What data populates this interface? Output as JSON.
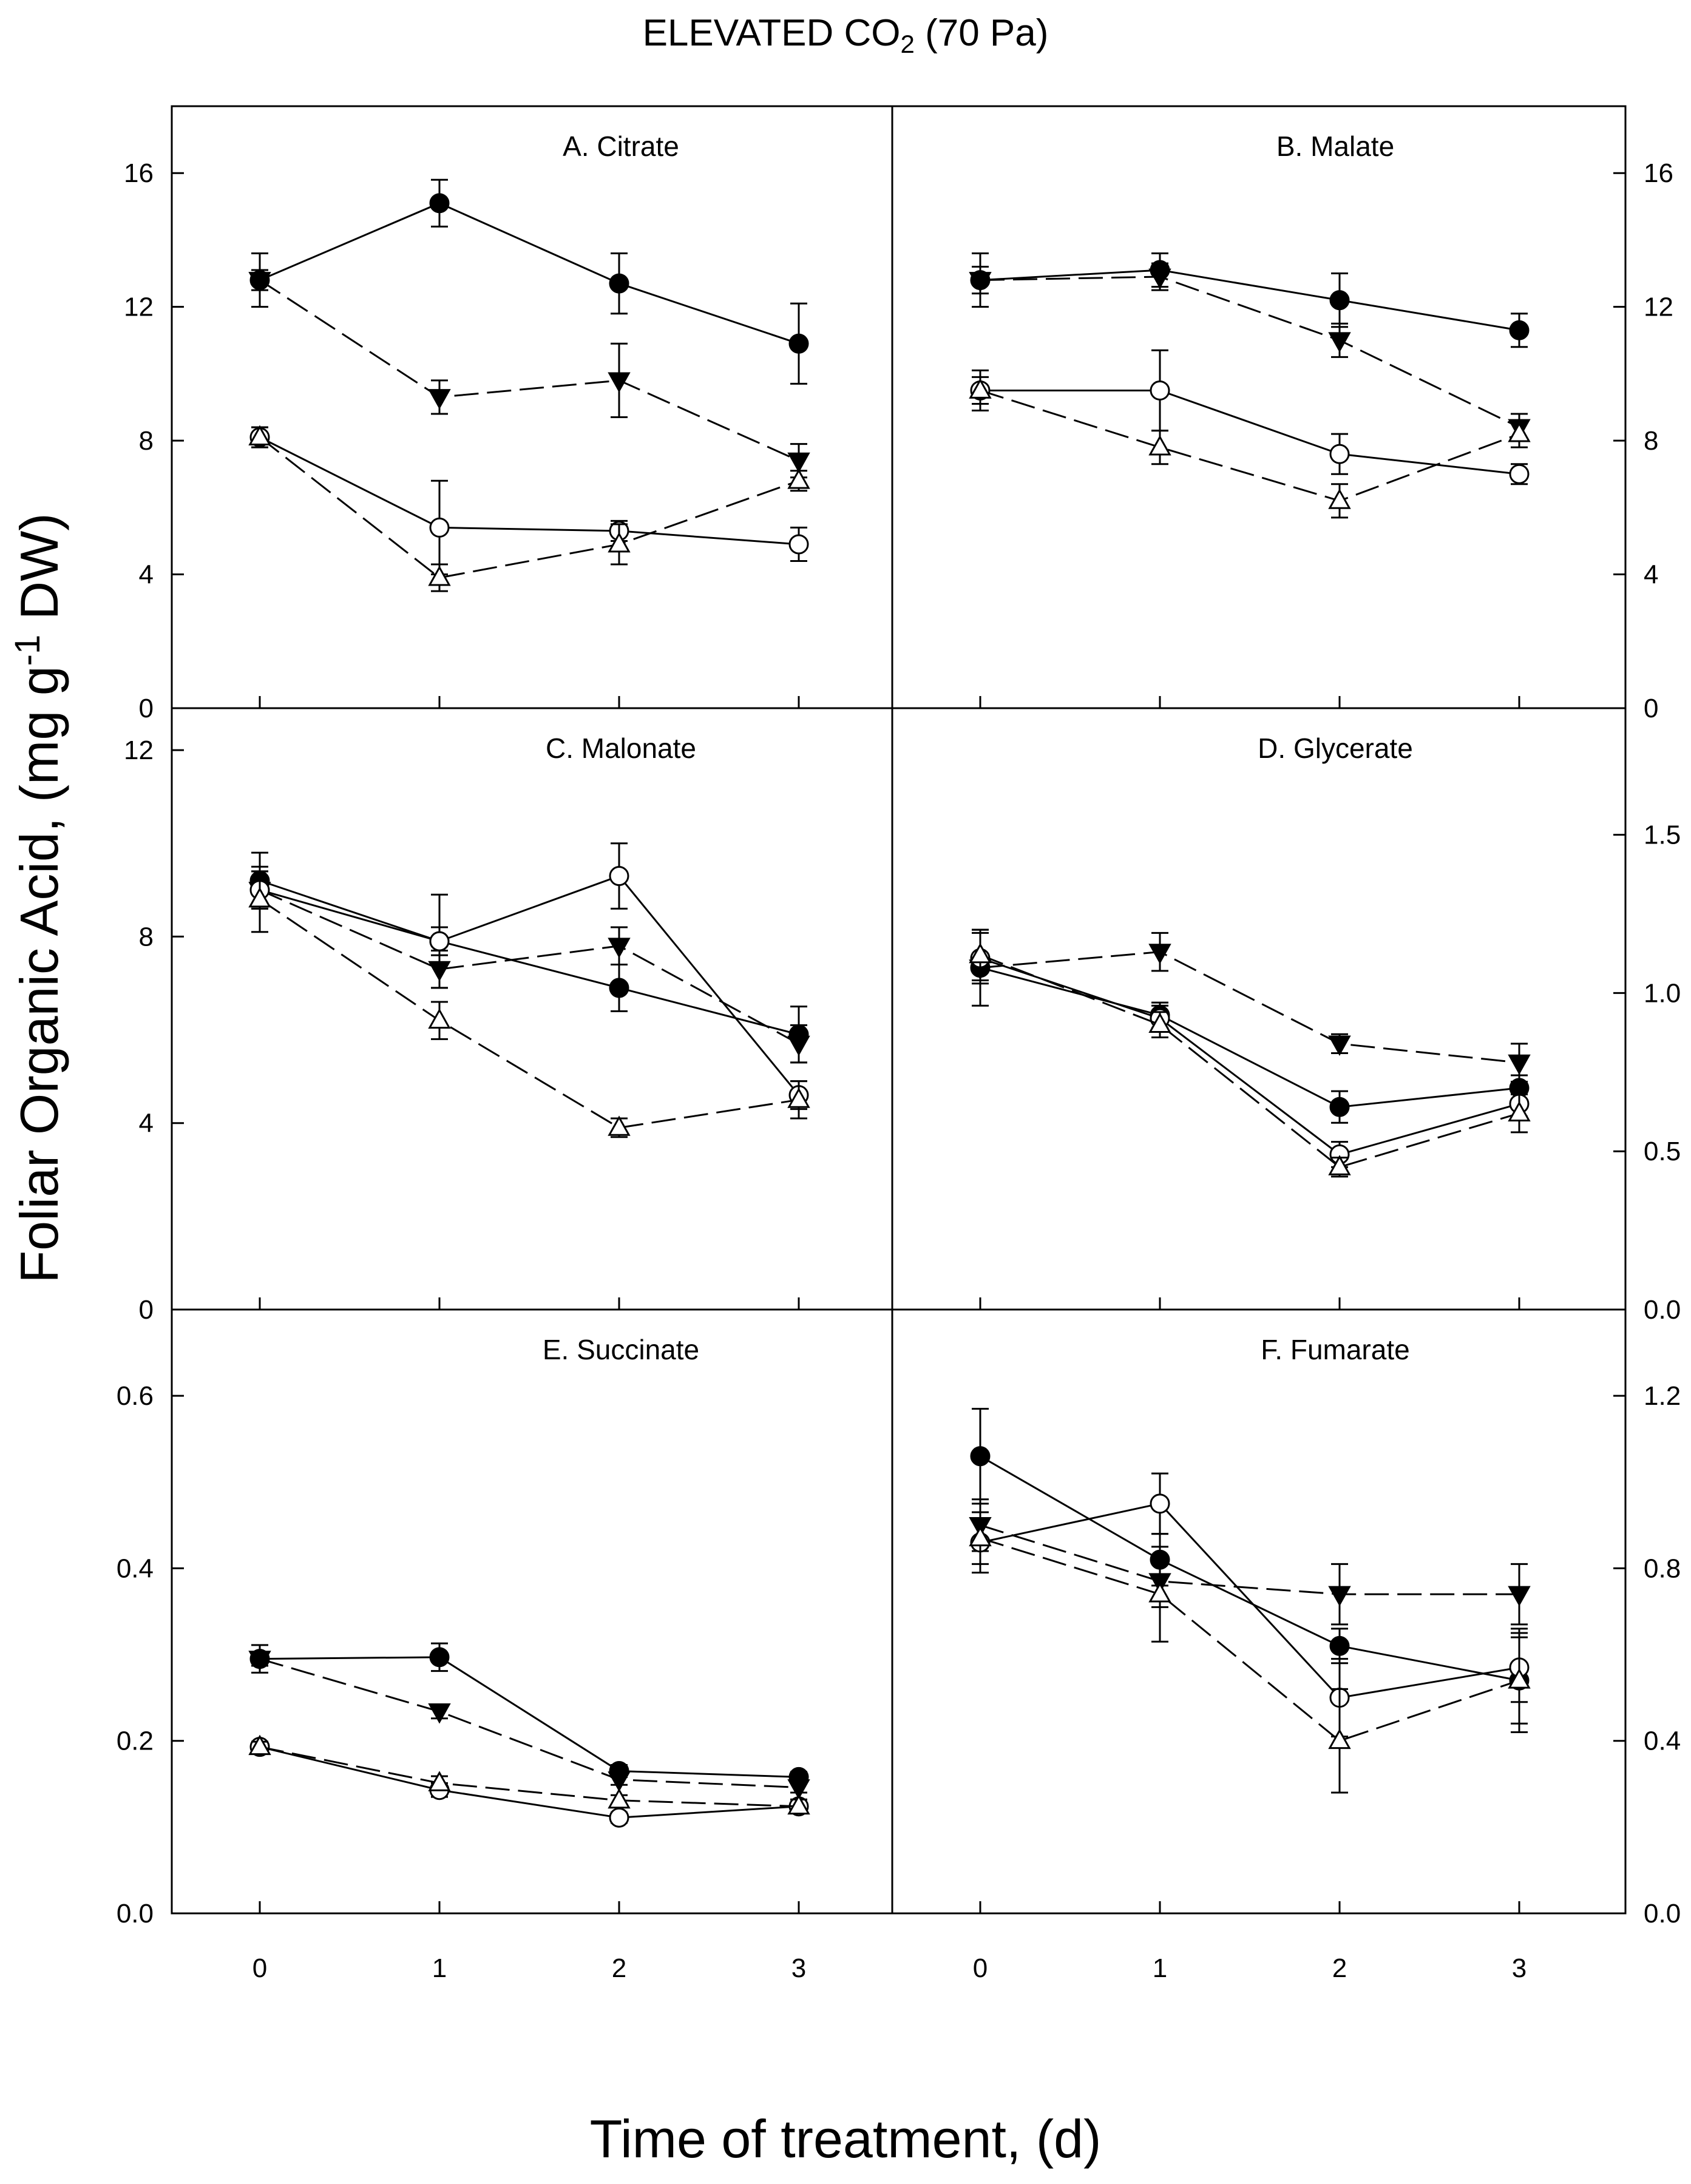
{
  "figure": {
    "title_main": "ELEVATED CO",
    "title_sub": "2",
    "title_tail": " (70 Pa)",
    "ylabel_main": "Foliar Organic Acid, (mg g",
    "ylabel_sup": "-1",
    "ylabel_tail": " DW)",
    "xlabel": "Time of treatment, (d)"
  },
  "chart_data": [
    {
      "type": "line",
      "panel": "A",
      "title": "A.  Citrate",
      "x": [
        0,
        1,
        2,
        3
      ],
      "xticks": [
        "0",
        "1",
        "2",
        "3"
      ],
      "ylim": [
        0,
        18
      ],
      "yticks": [
        0,
        4,
        8,
        12,
        16
      ],
      "ytick_labels": [
        "0",
        "4",
        "8",
        "12",
        "16"
      ],
      "ytick_side": "left",
      "series": [
        {
          "name": "filled-circle",
          "marker": "circle",
          "filled": true,
          "dash": false,
          "values": [
            12.8,
            15.1,
            12.7,
            10.9
          ],
          "errors": [
            0.8,
            0.7,
            0.9,
            1.2
          ]
        },
        {
          "name": "filled-triangle-down",
          "marker": "triangle-down",
          "filled": true,
          "dash": true,
          "values": [
            12.8,
            9.3,
            9.8,
            7.4
          ],
          "errors": [
            0.3,
            0.5,
            1.1,
            0.5
          ]
        },
        {
          "name": "open-circle",
          "marker": "circle",
          "filled": false,
          "dash": false,
          "values": [
            8.1,
            5.4,
            5.3,
            4.9
          ],
          "errors": [
            0.3,
            1.4,
            0.3,
            0.5
          ]
        },
        {
          "name": "open-triangle-up",
          "marker": "triangle-up",
          "filled": false,
          "dash": true,
          "values": [
            8.1,
            3.9,
            4.9,
            6.8
          ],
          "errors": [
            0.3,
            0.4,
            0.6,
            0.3
          ]
        }
      ]
    },
    {
      "type": "line",
      "panel": "B",
      "title": "B.  Malate",
      "x": [
        0,
        1,
        2,
        3
      ],
      "xticks": [
        "0",
        "1",
        "2",
        "3"
      ],
      "ylim": [
        0,
        18
      ],
      "yticks": [
        0,
        4,
        8,
        12,
        16
      ],
      "ytick_labels": [
        "0",
        "4",
        "8",
        "12",
        "16"
      ],
      "ytick_side": "right",
      "series": [
        {
          "name": "filled-circle",
          "marker": "circle",
          "filled": true,
          "dash": false,
          "values": [
            12.8,
            13.1,
            12.2,
            11.3
          ],
          "errors": [
            0.8,
            0.5,
            0.8,
            0.5
          ]
        },
        {
          "name": "filled-triangle-down",
          "marker": "triangle-down",
          "filled": true,
          "dash": true,
          "values": [
            12.8,
            12.9,
            11.0,
            8.4
          ],
          "errors": [
            0.4,
            0.4,
            0.5,
            0.4
          ]
        },
        {
          "name": "open-circle",
          "marker": "circle",
          "filled": false,
          "dash": false,
          "values": [
            9.5,
            9.5,
            7.6,
            7.0
          ],
          "errors": [
            0.6,
            1.2,
            0.6,
            0.3
          ]
        },
        {
          "name": "open-triangle-up",
          "marker": "triangle-up",
          "filled": false,
          "dash": true,
          "values": [
            9.5,
            7.8,
            6.2,
            8.2
          ],
          "errors": [
            0.4,
            0.5,
            0.5,
            0.4
          ]
        }
      ]
    },
    {
      "type": "line",
      "panel": "C",
      "title": "C.  Malonate",
      "x": [
        0,
        1,
        2,
        3
      ],
      "xticks": [
        "0",
        "1",
        "2",
        "3"
      ],
      "ylim": [
        0,
        12.9
      ],
      "yticks": [
        0,
        4,
        8,
        12
      ],
      "ytick_labels": [
        "0",
        "4",
        "8",
        "12"
      ],
      "ytick_side": "left",
      "series": [
        {
          "name": "filled-circle",
          "marker": "circle",
          "filled": true,
          "dash": false,
          "values": [
            9.2,
            7.9,
            6.9,
            5.9
          ],
          "errors": [
            0.6,
            1.0,
            0.5,
            0.6
          ]
        },
        {
          "name": "filled-triangle-down",
          "marker": "triangle-down",
          "filled": true,
          "dash": true,
          "values": [
            9.0,
            7.3,
            7.8,
            5.7
          ],
          "errors": [
            0.4,
            0.4,
            0.4,
            0.4
          ]
        },
        {
          "name": "open-circle",
          "marker": "circle",
          "filled": false,
          "dash": false,
          "values": [
            9.0,
            7.9,
            9.3,
            4.6
          ],
          "errors": [
            0.4,
            0.3,
            0.7,
            0.3
          ]
        },
        {
          "name": "open-triangle-up",
          "marker": "triangle-up",
          "filled": false,
          "dash": true,
          "values": [
            8.8,
            6.2,
            3.9,
            4.5
          ],
          "errors": [
            0.7,
            0.4,
            0.2,
            0.4
          ]
        }
      ]
    },
    {
      "type": "line",
      "panel": "D",
      "title": "D.  Glycerate",
      "x": [
        0,
        1,
        2,
        3
      ],
      "xticks": [
        "0",
        "1",
        "2",
        "3"
      ],
      "ylim": [
        0,
        1.9
      ],
      "yticks": [
        0.0,
        0.5,
        1.0,
        1.5
      ],
      "ytick_labels": [
        "0.0",
        "0.5",
        "1.0",
        "1.5"
      ],
      "ytick_side": "right",
      "series": [
        {
          "name": "filled-circle",
          "marker": "circle",
          "filled": true,
          "dash": false,
          "values": [
            1.08,
            0.93,
            0.64,
            0.7
          ],
          "errors": [
            0.12,
            0.04,
            0.05,
            0.04
          ]
        },
        {
          "name": "filled-triangle-down",
          "marker": "triangle-down",
          "filled": true,
          "dash": true,
          "values": [
            1.08,
            1.13,
            0.84,
            0.78
          ],
          "errors": [
            0.04,
            0.06,
            0.03,
            0.06
          ]
        },
        {
          "name": "open-circle",
          "marker": "circle",
          "filled": false,
          "dash": false,
          "values": [
            1.11,
            0.92,
            0.49,
            0.65
          ],
          "errors": [
            0.08,
            0.04,
            0.04,
            0.04
          ]
        },
        {
          "name": "open-triangle-up",
          "marker": "triangle-up",
          "filled": false,
          "dash": true,
          "values": [
            1.12,
            0.9,
            0.45,
            0.62
          ],
          "errors": [
            0.08,
            0.04,
            0.03,
            0.06
          ]
        }
      ]
    },
    {
      "type": "line",
      "panel": "E",
      "title": "E.  Succinate",
      "x": [
        0,
        1,
        2,
        3
      ],
      "xticks": [
        "0",
        "1",
        "2",
        "3"
      ],
      "ylim": [
        0,
        0.7
      ],
      "yticks": [
        0.0,
        0.2,
        0.4,
        0.6
      ],
      "ytick_labels": [
        "0.0",
        "0.2",
        "0.4",
        "0.6"
      ],
      "ytick_side": "left",
      "series": [
        {
          "name": "filled-circle",
          "marker": "circle",
          "filled": true,
          "dash": false,
          "values": [
            0.295,
            0.297,
            0.165,
            0.158
          ],
          "errors": [
            0.016,
            0.016,
            0.007,
            0.006
          ]
        },
        {
          "name": "filled-triangle-down",
          "marker": "triangle-down",
          "filled": true,
          "dash": true,
          "values": [
            0.295,
            0.234,
            0.155,
            0.146
          ],
          "errors": [
            0.008,
            0.008,
            0.006,
            0.006
          ]
        },
        {
          "name": "open-circle",
          "marker": "circle",
          "filled": false,
          "dash": false,
          "values": [
            0.193,
            0.143,
            0.111,
            0.124
          ],
          "errors": [
            0.006,
            0.008,
            0.006,
            0.008
          ]
        },
        {
          "name": "open-triangle-up",
          "marker": "triangle-up",
          "filled": false,
          "dash": true,
          "values": [
            0.193,
            0.151,
            0.131,
            0.124
          ],
          "errors": [
            0.006,
            0.008,
            0.006,
            0.008
          ]
        }
      ]
    },
    {
      "type": "line",
      "panel": "F",
      "title": "F.  Fumarate",
      "x": [
        0,
        1,
        2,
        3
      ],
      "xticks": [
        "0",
        "1",
        "2",
        "3"
      ],
      "ylim": [
        0,
        1.4
      ],
      "yticks": [
        0.0,
        0.4,
        0.8,
        1.2
      ],
      "ytick_labels": [
        "0.0",
        "0.4",
        "0.8",
        "1.2"
      ],
      "ytick_side": "right",
      "series": [
        {
          "name": "filled-circle",
          "marker": "circle",
          "filled": true,
          "dash": false,
          "values": [
            1.06,
            0.82,
            0.62,
            0.54
          ],
          "errors": [
            0.11,
            0.06,
            0.04,
            0.12
          ]
        },
        {
          "name": "filled-triangle-down",
          "marker": "triangle-down",
          "filled": true,
          "dash": true,
          "values": [
            0.9,
            0.77,
            0.74,
            0.74
          ],
          "errors": [
            0.06,
            0.06,
            0.07,
            0.07
          ]
        },
        {
          "name": "open-circle",
          "marker": "circle",
          "filled": false,
          "dash": false,
          "values": [
            0.86,
            0.95,
            0.5,
            0.57
          ],
          "errors": [
            0.07,
            0.07,
            0.09,
            0.08
          ]
        },
        {
          "name": "open-triangle-up",
          "marker": "triangle-up",
          "filled": false,
          "dash": true,
          "values": [
            0.87,
            0.74,
            0.4,
            0.54
          ],
          "errors": [
            0.06,
            0.11,
            0.12,
            0.1
          ]
        }
      ]
    }
  ]
}
